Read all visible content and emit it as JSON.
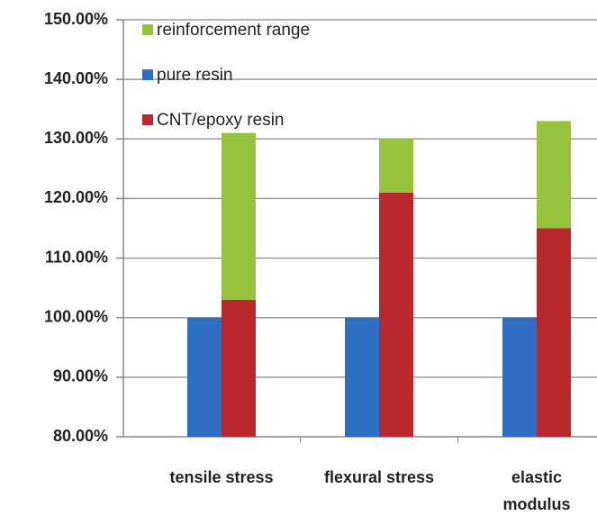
{
  "chart_data": {
    "type": "bar",
    "categories": [
      "tensile stress",
      "flexural stress",
      "elastic modulus"
    ],
    "series": [
      {
        "name": "pure resin",
        "color": "#2e6fc4",
        "values": [
          100,
          100,
          100
        ]
      },
      {
        "name": "CNT/epoxy resin",
        "color": "#b8282c",
        "values": [
          103,
          121,
          115
        ]
      },
      {
        "name": "reinforcement range",
        "color": "#97c23c",
        "values": [
          28,
          9,
          18
        ]
      }
    ],
    "ylim": [
      80,
      150
    ],
    "yticks": [
      {
        "value": 80,
        "label": "80.00%"
      },
      {
        "value": 90,
        "label": "90.00%"
      },
      {
        "value": 100,
        "label": "100.00%"
      },
      {
        "value": 110,
        "label": "110.00%"
      },
      {
        "value": 120,
        "label": "120.00%"
      },
      {
        "value": 130,
        "label": "130.00%"
      },
      {
        "value": 140,
        "label": "140.00%"
      },
      {
        "value": 150,
        "label": "150.00%"
      }
    ],
    "grid": true,
    "legend": "top-left"
  }
}
